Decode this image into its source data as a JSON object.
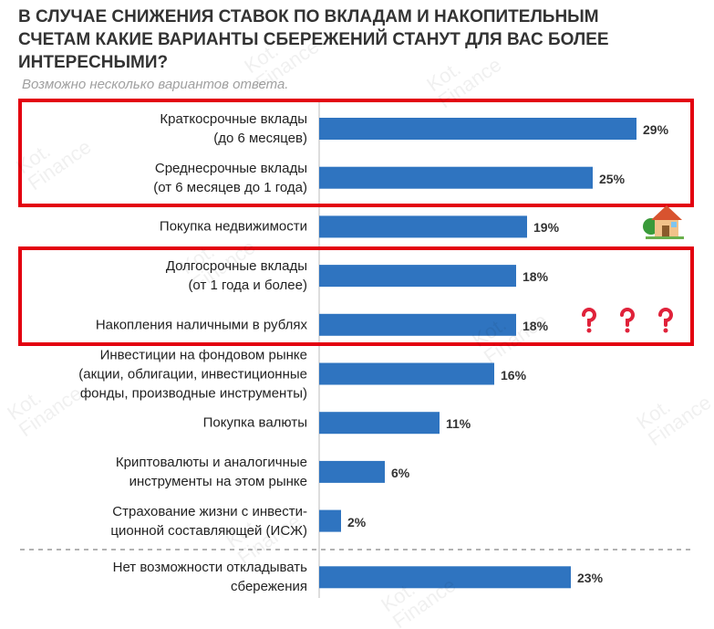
{
  "chart_data": {
    "type": "bar",
    "orientation": "horizontal",
    "title": "В случае снижения ставок по вкладам и накопительным\nсчетам какие варианты сбережений станут для вас более\nинтересными?",
    "subtitle": "Возможно несколько вариантов ответа.",
    "watermark": "Kot.\nFinance",
    "categories": [
      "Краткосрочные вклады\n(до 6 месяцев)",
      "Среднесрочные вклады\n(от 6 месяцев до 1 года)",
      "Покупка недвижимости",
      "Долгосрочные вклады\n(от 1 года и более)",
      "Накопления наличными в рублях",
      "Инвестиции на фондовом рынке\n(акции, облигации, инвестиционные\nфонды, производные инструменты)",
      "Покупка валюты",
      "Криптовалюты и аналогичные\nинструменты на этом рынке",
      "Страхование жизни с инвести-\nционной составляющей (ИСЖ)",
      "Нет возможности откладывать\nсбережения"
    ],
    "values": [
      29,
      25,
      19,
      18,
      18,
      16,
      11,
      6,
      2,
      23
    ],
    "value_labels": [
      "29%",
      "25%",
      "19%",
      "18%",
      "18%",
      "16%",
      "11%",
      "6%",
      "2%",
      "23%"
    ],
    "color": "#2f74c0"
  }
}
